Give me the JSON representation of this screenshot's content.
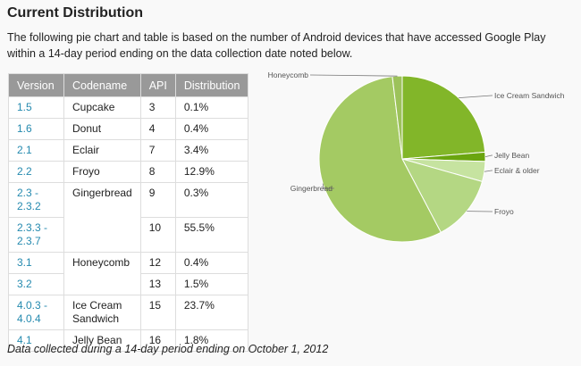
{
  "title": "Current Distribution",
  "intro": "The following pie chart and table is based on the number of Android devices that have accessed Google Play within a 14-day period ending on the data collection date noted below.",
  "table": {
    "headers": [
      "Version",
      "Codename",
      "API",
      "Distribution"
    ],
    "rows": [
      {
        "version": "1.5",
        "codename": "Cupcake",
        "api": "3",
        "distribution": "0.1%"
      },
      {
        "version": "1.6",
        "codename": "Donut",
        "api": "4",
        "distribution": "0.4%"
      },
      {
        "version": "2.1",
        "codename": "Eclair",
        "api": "7",
        "distribution": "3.4%"
      },
      {
        "version": "2.2",
        "codename": "Froyo",
        "api": "8",
        "distribution": "12.9%"
      },
      {
        "version": "2.3 - 2.3.2",
        "codename": "Gingerbread",
        "api": "9",
        "distribution": "0.3%"
      },
      {
        "version": "2.3.3 - 2.3.7",
        "codename": "",
        "api": "10",
        "distribution": "55.5%"
      },
      {
        "version": "3.1",
        "codename": "Honeycomb",
        "api": "12",
        "distribution": "0.4%"
      },
      {
        "version": "3.2",
        "codename": "",
        "api": "13",
        "distribution": "1.5%"
      },
      {
        "version": "4.0.3 - 4.0.4",
        "codename": "Ice Cream Sandwich",
        "api": "15",
        "distribution": "23.7%"
      },
      {
        "version": "4.1",
        "codename": "Jelly Bean",
        "api": "16",
        "distribution": "1.8%"
      }
    ]
  },
  "footer": "Data collected during a 14-day period ending on October 1, 2012",
  "chart_data": {
    "type": "pie",
    "title": "",
    "categories": [
      "Ice Cream Sandwich",
      "Jelly Bean",
      "Eclair & older",
      "Froyo",
      "Gingerbread",
      "Honeycomb"
    ],
    "values": [
      23.7,
      1.8,
      3.9,
      12.9,
      55.8,
      1.9
    ],
    "colors": [
      "#82b629",
      "#6aa50f",
      "#c6e3a0",
      "#b4d783",
      "#a4ca63",
      "#9cc25a"
    ],
    "legend": "labels-with-leader-lines"
  }
}
